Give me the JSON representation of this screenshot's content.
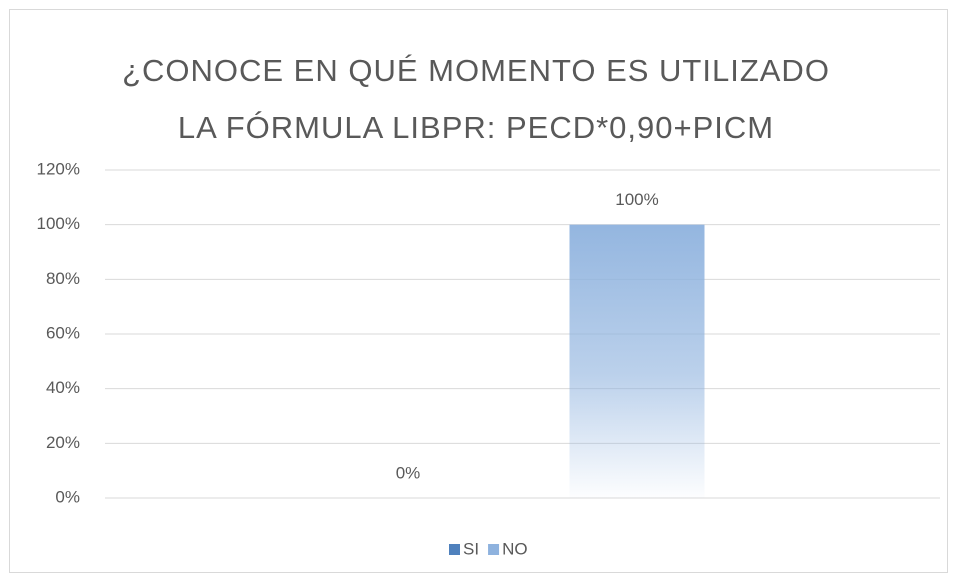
{
  "chart_data": {
    "type": "bar",
    "title": "¿CONOCE EN QUÉ MOMENTO ES UTILIZADO LA FÓRMULA LIBPR: PECD*0,90+PICM",
    "categories": [
      null
    ],
    "series": [
      {
        "name": "SI",
        "color": "#4f81bd",
        "values": [
          0
        ],
        "value_labels": [
          "0%"
        ]
      },
      {
        "name": "NO",
        "color": "#8eb2de",
        "values": [
          100
        ],
        "value_labels": [
          "100%"
        ]
      }
    ],
    "ylim": [
      0,
      120
    ],
    "yticks": [
      {
        "value": 0,
        "label": "0%"
      },
      {
        "value": 20,
        "label": "20%"
      },
      {
        "value": 40,
        "label": "40%"
      },
      {
        "value": 60,
        "label": "60%"
      },
      {
        "value": 80,
        "label": "80%"
      },
      {
        "value": 100,
        "label": "100%"
      },
      {
        "value": 120,
        "label": "120%"
      }
    ],
    "grid": true,
    "legend": "bottom"
  }
}
